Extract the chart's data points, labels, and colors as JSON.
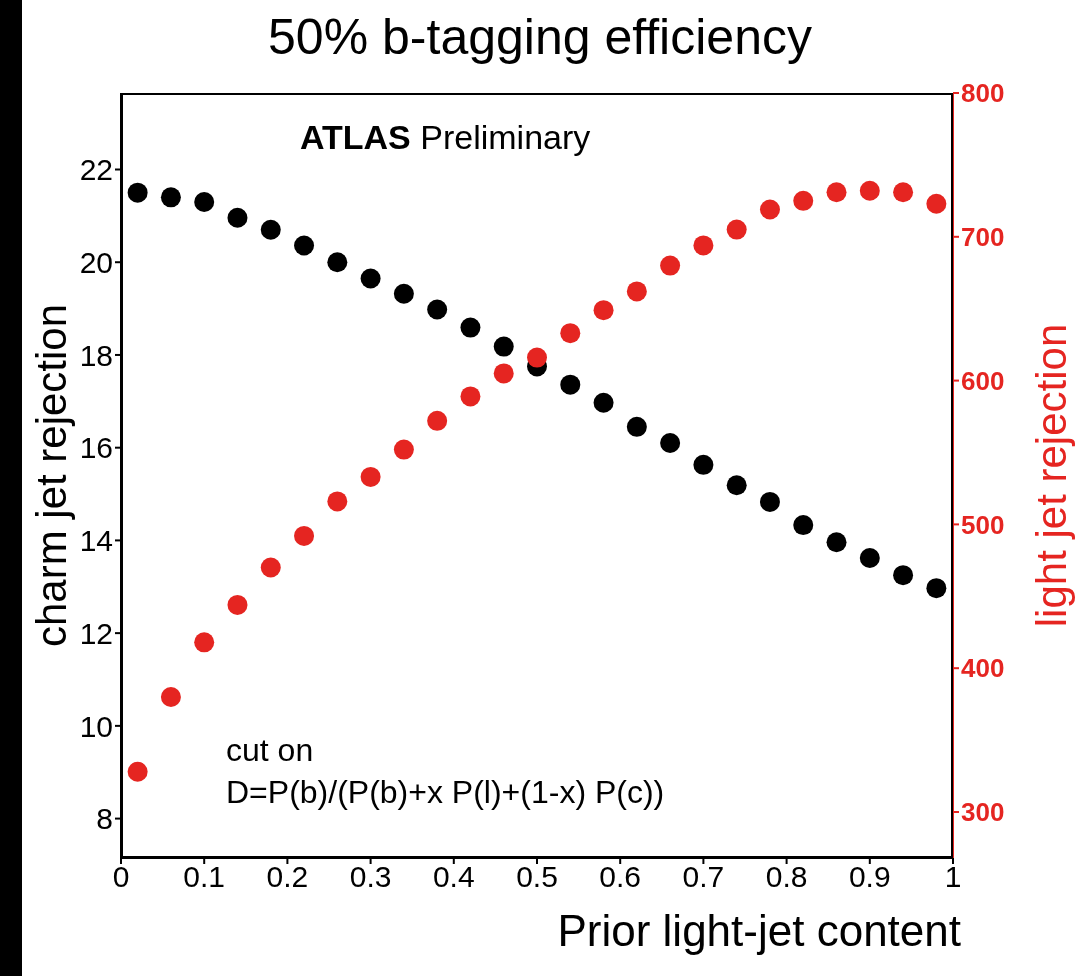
{
  "chart_data": {
    "type": "scatter",
    "title": "50% b-tagging efficiency",
    "xlabel": "Prior light-jet content",
    "ylabel": "charm jet rejection",
    "y2label": "light jet rejection",
    "annotations": [
      "ATLAS Preliminary",
      "cut on",
      "D=P(b)/(P(b)+x P(l)+(1-x) P(c))"
    ],
    "x": [
      0.02,
      0.06,
      0.1,
      0.14,
      0.18,
      0.22,
      0.26,
      0.3,
      0.34,
      0.38,
      0.42,
      0.46,
      0.5,
      0.54,
      0.58,
      0.62,
      0.66,
      0.7,
      0.74,
      0.78,
      0.82,
      0.86,
      0.9,
      0.94,
      0.98
    ],
    "series": [
      {
        "color": "#000000",
        "values": [
          21.5,
          21.4,
          21.3,
          20.96,
          20.7,
          20.36,
          20.0,
          19.65,
          19.32,
          18.98,
          18.59,
          18.18,
          17.75,
          17.36,
          16.97,
          16.45,
          16.1,
          15.63,
          15.19,
          14.83,
          14.33,
          13.96,
          13.62,
          13.25,
          12.97
        ]
      },
      {
        "color": "#e52521",
        "axis": "y2",
        "values": [
          328,
          380,
          418,
          444,
          470,
          492,
          516,
          533,
          552,
          572,
          589,
          605,
          616,
          633,
          649,
          662,
          680,
          694,
          705,
          719,
          725,
          731,
          732,
          731,
          723
        ]
      }
    ],
    "xlim": [
      0,
      1
    ],
    "xticks": [
      0,
      0.1,
      0.2,
      0.3,
      0.4,
      0.5,
      0.6,
      0.7,
      0.8,
      0.9,
      1
    ],
    "ylim": [
      7.15,
      23.65
    ],
    "yticks": [
      8,
      10,
      12,
      14,
      16,
      18,
      20,
      22
    ],
    "y2lim": [
      268,
      800
    ],
    "y2ticks": [
      300,
      400,
      500,
      600,
      700,
      800
    ],
    "marker": "circle"
  }
}
